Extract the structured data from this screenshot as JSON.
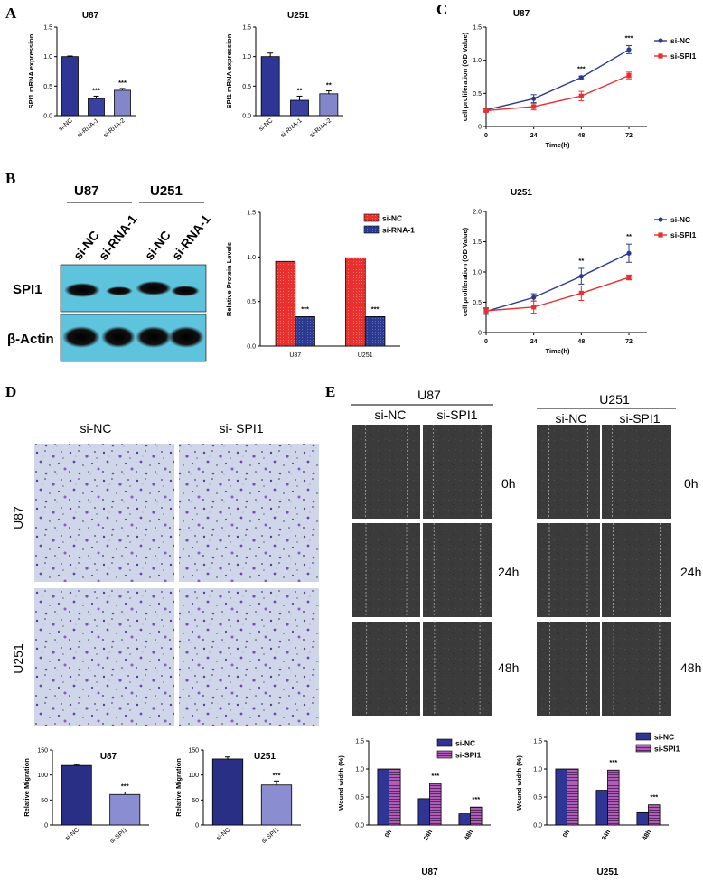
{
  "panels": {
    "A": "A",
    "B": "B",
    "C": "C",
    "D": "D",
    "E": "E"
  },
  "colors": {
    "dark_bar": "#2e3192",
    "light_bar": "#7b7fc4",
    "red": "#e8312f",
    "navy": "#2b3a8f",
    "purple": "#b05cb8",
    "wb_bg": "#5ec4de",
    "micro_bg": "#c8d2e8",
    "scratch_bg": "#3a3a3a"
  },
  "panel_b": {
    "groups": [
      "U87",
      "U251"
    ],
    "lanes": [
      "si-NC",
      "si-RNA-1",
      "si-NC",
      "si-RNA-1"
    ],
    "bands": [
      "SPI1",
      "β-Actin"
    ]
  },
  "panel_d": {
    "cols": [
      "si-NC",
      "si- SPI1"
    ],
    "rows": [
      "U87",
      "U251"
    ]
  },
  "panel_e": {
    "groups": [
      "U87",
      "U251"
    ],
    "cols": [
      "si-NC",
      "si-SPI1"
    ],
    "times": [
      "0h",
      "24h",
      "48h"
    ]
  },
  "chart_data": [
    {
      "id": "A1",
      "type": "bar",
      "title": "U87",
      "ylabel": "SPI1 mRNA expression",
      "ylim": [
        0,
        1.5
      ],
      "yticks": [
        "0.0",
        "0.5",
        "1.0",
        "1.5"
      ],
      "categories": [
        "si-NC",
        "si-RNA-1",
        "si-RNA-2"
      ],
      "values": [
        1.0,
        0.29,
        0.43
      ],
      "errors": [
        0.01,
        0.04,
        0.03
      ],
      "annotations": [
        "",
        "***",
        "***"
      ]
    },
    {
      "id": "A2",
      "type": "bar",
      "title": "U251",
      "ylabel": "SPI1 mRNA expression",
      "ylim": [
        0,
        1.5
      ],
      "yticks": [
        "0.0",
        "0.5",
        "1.0",
        "1.5"
      ],
      "categories": [
        "si-NC",
        "si-RNA-1",
        "si-RNA-2"
      ],
      "values": [
        1.0,
        0.26,
        0.37
      ],
      "errors": [
        0.06,
        0.07,
        0.05
      ],
      "annotations": [
        "",
        "**",
        "**"
      ]
    },
    {
      "id": "C1",
      "type": "line",
      "title": "U87",
      "xlabel": "Time(h)",
      "ylabel": "cell proliferation (OD Value)",
      "x": [
        0,
        24,
        48,
        72
      ],
      "xticks": [
        "0",
        "24",
        "48",
        "72"
      ],
      "ylim": [
        0,
        1.5
      ],
      "yticks": [
        "0",
        "0.5",
        "1.0",
        "1.5"
      ],
      "series": [
        {
          "name": "si-NC",
          "values": [
            0.25,
            0.42,
            0.74,
            1.16
          ],
          "errors": [
            0.02,
            0.06,
            0.02,
            0.06
          ]
        },
        {
          "name": "si-SPI1",
          "values": [
            0.24,
            0.3,
            0.46,
            0.77
          ],
          "errors": [
            0.02,
            0.05,
            0.07,
            0.05
          ]
        }
      ],
      "annotations": [
        "",
        "",
        "***",
        "***"
      ],
      "legend": "right"
    },
    {
      "id": "C2",
      "type": "line",
      "title": "U251",
      "xlabel": "Time(h)",
      "ylabel": "cell proliferation (OD Value)",
      "x": [
        0,
        24,
        48,
        72
      ],
      "xticks": [
        "0",
        "24",
        "48",
        "72"
      ],
      "ylim": [
        0,
        2.0
      ],
      "yticks": [
        "0",
        "0.5",
        "1.0",
        "1.5",
        "2.0"
      ],
      "series": [
        {
          "name": "si-NC",
          "values": [
            0.35,
            0.58,
            0.93,
            1.31
          ],
          "errors": [
            0.05,
            0.06,
            0.13,
            0.15
          ]
        },
        {
          "name": "si-SPI1",
          "values": [
            0.36,
            0.42,
            0.65,
            0.91
          ],
          "errors": [
            0.05,
            0.1,
            0.12,
            0.04
          ]
        }
      ],
      "annotations": [
        "",
        "",
        "**",
        "**"
      ],
      "legend": "right"
    },
    {
      "id": "B2",
      "type": "bar",
      "ylabel": "Relative Protein Levels",
      "ylim": [
        0,
        1.5
      ],
      "yticks": [
        "0.0",
        "0.5",
        "1.0",
        "1.5"
      ],
      "categories": [
        "U87",
        "U251"
      ],
      "series": [
        {
          "name": "si-NC",
          "values": [
            0.95,
            0.99
          ]
        },
        {
          "name": "si-RNA-1",
          "values": [
            0.33,
            0.33
          ]
        }
      ],
      "annotations": [
        "***",
        "***"
      ],
      "legend": "top-right"
    },
    {
      "id": "D1",
      "type": "bar",
      "title": "U87",
      "ylabel": "Relative Migration",
      "ylim": [
        0,
        150
      ],
      "yticks": [
        "0",
        "50",
        "100",
        "150"
      ],
      "categories": [
        "si-NC",
        "si-SPI1"
      ],
      "values": [
        119,
        61
      ],
      "errors": [
        2,
        5
      ],
      "annotations": [
        "",
        "***"
      ]
    },
    {
      "id": "D2",
      "type": "bar",
      "title": "U251",
      "ylabel": "Relative Migration",
      "ylim": [
        0,
        150
      ],
      "yticks": [
        "0",
        "50",
        "100",
        "150"
      ],
      "categories": [
        "si-NC",
        "si-SPI1"
      ],
      "values": [
        132,
        80
      ],
      "errors": [
        4,
        8
      ],
      "annotations": [
        "",
        "***"
      ]
    },
    {
      "id": "E1",
      "type": "bar",
      "xlabel": "U87",
      "ylabel": "Wound width (%)",
      "ylim": [
        0,
        1.5
      ],
      "yticks": [
        "0.0",
        "0.5",
        "1.0",
        "1.5"
      ],
      "categories": [
        "0h",
        "24h",
        "48h"
      ],
      "series": [
        {
          "name": "si-NC",
          "values": [
            1.0,
            0.47,
            0.2
          ]
        },
        {
          "name": "si-SPI1",
          "values": [
            1.0,
            0.74,
            0.32
          ]
        }
      ],
      "annotations": [
        "",
        "***",
        "***"
      ],
      "legend": "top-right"
    },
    {
      "id": "E2",
      "type": "bar",
      "xlabel": "U251",
      "ylabel": "Wound width (%)",
      "ylim": [
        0,
        1.5
      ],
      "yticks": [
        "0.0",
        "0.5",
        "1.0",
        "1.5"
      ],
      "categories": [
        "0h",
        "24h",
        "48h"
      ],
      "series": [
        {
          "name": "si-NC",
          "values": [
            1.0,
            0.62,
            0.22
          ]
        },
        {
          "name": "si-SPI1",
          "values": [
            1.0,
            0.98,
            0.36
          ]
        }
      ],
      "annotations": [
        "",
        "***",
        "***"
      ],
      "legend": "top-right"
    }
  ]
}
